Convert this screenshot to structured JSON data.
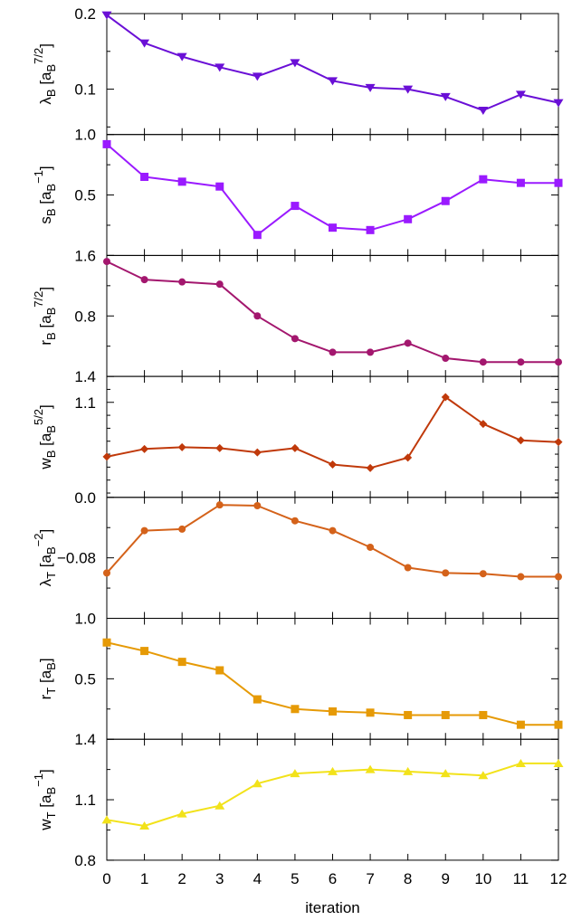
{
  "chart_data": {
    "type": "line",
    "xlabel": "iteration",
    "x": [
      0,
      1,
      2,
      3,
      4,
      5,
      6,
      7,
      8,
      9,
      10,
      11,
      12
    ],
    "xticks": [
      0,
      1,
      2,
      3,
      4,
      5,
      6,
      7,
      8,
      9,
      10,
      11,
      12
    ],
    "panels": [
      {
        "id": "lambdaB",
        "ylabel": {
          "base": "λ",
          "sub": "B",
          "unit_pre": " [a",
          "unit_sub": "B",
          "unit_sup": "7/2",
          "unit_post": "]"
        },
        "ylim": [
          0.04,
          0.2
        ],
        "yticks": [
          {
            "v": 0.2,
            "label": "0.2"
          },
          {
            "v": 0.1,
            "label": "0.1"
          }
        ],
        "color": "#6a0fd6",
        "marker": "triangle-down",
        "values": [
          0.198,
          0.161,
          0.143,
          0.129,
          0.117,
          0.135,
          0.111,
          0.102,
          0.1,
          0.09,
          0.072,
          0.093,
          0.082
        ]
      },
      {
        "id": "sB",
        "ylabel": {
          "base": "s",
          "sub": "B",
          "unit_pre": " [a",
          "unit_sub": "B",
          "unit_sup": "−1",
          "unit_post": "]"
        },
        "ylim": [
          0.0,
          1.0
        ],
        "yticks": [
          {
            "v": 1.0,
            "label": "1.0"
          },
          {
            "v": 0.5,
            "label": "0.5"
          }
        ],
        "color": "#9a1aff",
        "marker": "square",
        "values": [
          0.92,
          0.65,
          0.61,
          0.57,
          0.17,
          0.41,
          0.23,
          0.21,
          0.3,
          0.45,
          0.63,
          0.6,
          0.6
        ]
      },
      {
        "id": "rB",
        "ylabel": {
          "base": "r",
          "sub": "B",
          "unit_pre": " [a",
          "unit_sub": "B",
          "unit_sup": "7/2",
          "unit_post": "]"
        },
        "ylim": [
          0.0,
          1.6
        ],
        "yticks": [
          {
            "v": 1.6,
            "label": "1.6"
          },
          {
            "v": 0.8,
            "label": "0.8"
          }
        ],
        "color": "#a3176e",
        "marker": "circle",
        "values": [
          1.52,
          1.28,
          1.25,
          1.22,
          0.8,
          0.5,
          0.32,
          0.32,
          0.44,
          0.24,
          0.19,
          0.19,
          0.19
        ]
      },
      {
        "id": "wB",
        "ylabel": {
          "base": "w",
          "sub": "B",
          "unit_pre": " [a",
          "unit_sub": "B",
          "unit_sup": "5/2",
          "unit_post": "]"
        },
        "ylim": [
          0.0,
          1.4
        ],
        "yticks": [
          {
            "v": 1.4,
            "label": "1.4"
          },
          {
            "v": 1.1,
            "label": "1.1"
          }
        ],
        "color": "#c0390a",
        "marker": "diamond",
        "values": [
          0.47,
          0.56,
          0.58,
          0.57,
          0.52,
          0.57,
          0.38,
          0.34,
          0.46,
          1.16,
          0.85,
          0.66,
          0.64
        ]
      },
      {
        "id": "lambdaT",
        "ylabel": {
          "base": "λ",
          "sub": "T",
          "unit_pre": " [a",
          "unit_sub": "B",
          "unit_sup": "−2",
          "unit_post": "]"
        },
        "ylim": [
          -0.16,
          0.0
        ],
        "yticks": [
          {
            "v": 0.0,
            "label": "0.0"
          },
          {
            "v": -0.08,
            "label": "−0.08"
          }
        ],
        "color": "#d4621a",
        "marker": "circle",
        "values": [
          -0.1,
          -0.044,
          -0.042,
          -0.01,
          -0.011,
          -0.031,
          -0.044,
          -0.066,
          -0.093,
          -0.1,
          -0.101,
          -0.105,
          -0.105
        ]
      },
      {
        "id": "rT",
        "ylabel": {
          "base": "r",
          "sub": "T",
          "unit_pre": " [a",
          "unit_sub": "B",
          "unit_sup": "",
          "unit_post": "]"
        },
        "ylim": [
          0.0,
          1.0
        ],
        "yticks": [
          {
            "v": 1.0,
            "label": "1.0"
          },
          {
            "v": 0.5,
            "label": "0.5"
          }
        ],
        "color": "#e69a06",
        "marker": "square",
        "values": [
          0.8,
          0.73,
          0.64,
          0.57,
          0.33,
          0.25,
          0.23,
          0.22,
          0.2,
          0.2,
          0.2,
          0.12,
          0.12
        ]
      },
      {
        "id": "wT",
        "ylabel": {
          "base": "w",
          "sub": "T",
          "unit_pre": " [a",
          "unit_sub": "B",
          "unit_sup": "−1",
          "unit_post": "]"
        },
        "ylim": [
          0.8,
          1.4
        ],
        "yticks": [
          {
            "v": 1.4,
            "label": "1.4"
          },
          {
            "v": 1.1,
            "label": "1.1"
          },
          {
            "v": 0.8,
            "label": "0.8"
          }
        ],
        "color": "#f2e21a",
        "marker": "triangle-up",
        "values": [
          1.0,
          0.97,
          1.03,
          1.07,
          1.18,
          1.23,
          1.24,
          1.25,
          1.24,
          1.23,
          1.22,
          1.28,
          1.28
        ]
      }
    ]
  }
}
